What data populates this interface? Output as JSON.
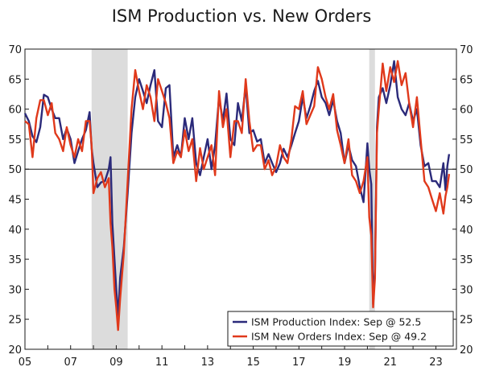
{
  "chart_data": {
    "type": "line",
    "title": "ISM Production vs. New Orders",
    "xlim": [
      2005.0,
      2023.9
    ],
    "ylim": [
      20,
      70
    ],
    "y_ticks": [
      20,
      25,
      30,
      35,
      40,
      45,
      50,
      55,
      60,
      65,
      70
    ],
    "x_ticks": [
      {
        "label": "05",
        "value": 2005
      },
      {
        "label": "07",
        "value": 2007
      },
      {
        "label": "09",
        "value": 2009
      },
      {
        "label": "11",
        "value": 2011
      },
      {
        "label": "13",
        "value": 2013
      },
      {
        "label": "15",
        "value": 2015
      },
      {
        "label": "17",
        "value": 2017
      },
      {
        "label": "19",
        "value": 2019
      },
      {
        "label": "21",
        "value": 2021
      },
      {
        "label": "23",
        "value": 2023
      }
    ],
    "reference_line": 50,
    "recessions": [
      [
        2007.92,
        2009.5
      ],
      [
        2020.08,
        2020.33
      ]
    ],
    "legend_position": "bottom-right",
    "series": [
      {
        "name": "ISM Production Index: Sep @ 52.5",
        "color": "#2b2a7a",
        "points": [
          [
            2005.0,
            59.3
          ],
          [
            2005.17,
            58
          ],
          [
            2005.33,
            55.5
          ],
          [
            2005.5,
            54.5
          ],
          [
            2005.67,
            57
          ],
          [
            2005.83,
            62.4
          ],
          [
            2006.0,
            62
          ],
          [
            2006.17,
            60
          ],
          [
            2006.33,
            58.5
          ],
          [
            2006.5,
            58.5
          ],
          [
            2006.67,
            55
          ],
          [
            2006.83,
            56.8
          ],
          [
            2007.0,
            55
          ],
          [
            2007.17,
            51
          ],
          [
            2007.33,
            53
          ],
          [
            2007.5,
            55
          ],
          [
            2007.67,
            56.5
          ],
          [
            2007.83,
            59.5
          ],
          [
            2007.92,
            53.5
          ],
          [
            2008.0,
            51
          ],
          [
            2008.17,
            47
          ],
          [
            2008.33,
            47.8
          ],
          [
            2008.5,
            48
          ],
          [
            2008.67,
            50
          ],
          [
            2008.75,
            52
          ],
          [
            2008.83,
            41
          ],
          [
            2008.92,
            35
          ],
          [
            2009.0,
            30
          ],
          [
            2009.08,
            25.4
          ],
          [
            2009.17,
            32
          ],
          [
            2009.33,
            37
          ],
          [
            2009.5,
            46
          ],
          [
            2009.67,
            56
          ],
          [
            2009.83,
            62
          ],
          [
            2010.0,
            65
          ],
          [
            2010.17,
            63
          ],
          [
            2010.33,
            61
          ],
          [
            2010.5,
            64
          ],
          [
            2010.67,
            66.5
          ],
          [
            2010.83,
            58
          ],
          [
            2011.0,
            57
          ],
          [
            2011.17,
            63.5
          ],
          [
            2011.33,
            64
          ],
          [
            2011.5,
            52
          ],
          [
            2011.67,
            54
          ],
          [
            2011.83,
            52
          ],
          [
            2012.0,
            58.5
          ],
          [
            2012.17,
            55
          ],
          [
            2012.33,
            58.5
          ],
          [
            2012.5,
            51
          ],
          [
            2012.67,
            49
          ],
          [
            2012.83,
            52
          ],
          [
            2013.0,
            55
          ],
          [
            2013.17,
            50
          ],
          [
            2013.33,
            54
          ],
          [
            2013.5,
            62
          ],
          [
            2013.67,
            58
          ],
          [
            2013.83,
            62.6
          ],
          [
            2014.0,
            55
          ],
          [
            2014.17,
            54
          ],
          [
            2014.33,
            61
          ],
          [
            2014.5,
            58
          ],
          [
            2014.67,
            64
          ],
          [
            2014.83,
            56
          ],
          [
            2015.0,
            56.5
          ],
          [
            2015.17,
            54.6
          ],
          [
            2015.33,
            55
          ],
          [
            2015.5,
            51
          ],
          [
            2015.67,
            52.5
          ],
          [
            2015.83,
            51
          ],
          [
            2016.0,
            49.5
          ],
          [
            2016.17,
            51
          ],
          [
            2016.33,
            53.4
          ],
          [
            2016.5,
            52
          ],
          [
            2016.67,
            54
          ],
          [
            2016.83,
            56
          ],
          [
            2017.0,
            58
          ],
          [
            2017.17,
            62
          ],
          [
            2017.33,
            58.5
          ],
          [
            2017.5,
            60.5
          ],
          [
            2017.67,
            63
          ],
          [
            2017.83,
            64.7
          ],
          [
            2018.0,
            62
          ],
          [
            2018.17,
            61
          ],
          [
            2018.33,
            59
          ],
          [
            2018.5,
            61.5
          ],
          [
            2018.67,
            58
          ],
          [
            2018.83,
            56
          ],
          [
            2019.0,
            51
          ],
          [
            2019.17,
            54
          ],
          [
            2019.33,
            51.5
          ],
          [
            2019.5,
            50.5
          ],
          [
            2019.67,
            47
          ],
          [
            2019.83,
            44.5
          ],
          [
            2020.0,
            54.3
          ],
          [
            2020.08,
            50
          ],
          [
            2020.17,
            47.5
          ],
          [
            2020.25,
            27.5
          ],
          [
            2020.33,
            33.2
          ],
          [
            2020.42,
            57
          ],
          [
            2020.5,
            62
          ],
          [
            2020.67,
            63.5
          ],
          [
            2020.83,
            61
          ],
          [
            2021.0,
            64
          ],
          [
            2021.17,
            68
          ],
          [
            2021.33,
            62
          ],
          [
            2021.5,
            60
          ],
          [
            2021.67,
            59
          ],
          [
            2021.83,
            61
          ],
          [
            2022.0,
            58
          ],
          [
            2022.17,
            60
          ],
          [
            2022.33,
            54
          ],
          [
            2022.5,
            50.5
          ],
          [
            2022.67,
            51
          ],
          [
            2022.83,
            48
          ],
          [
            2023.0,
            48
          ],
          [
            2023.17,
            47
          ],
          [
            2023.33,
            51
          ],
          [
            2023.42,
            46.5
          ],
          [
            2023.5,
            50.5
          ],
          [
            2023.58,
            52.5
          ]
        ]
      },
      {
        "name": "ISM New Orders Index: Sep @ 49.2",
        "color": "#e0391b",
        "points": [
          [
            2005.0,
            58
          ],
          [
            2005.17,
            57.5
          ],
          [
            2005.33,
            52
          ],
          [
            2005.5,
            58.5
          ],
          [
            2005.67,
            61.5
          ],
          [
            2005.83,
            61.5
          ],
          [
            2006.0,
            59
          ],
          [
            2006.17,
            61
          ],
          [
            2006.33,
            56
          ],
          [
            2006.5,
            55
          ],
          [
            2006.67,
            53
          ],
          [
            2006.83,
            57
          ],
          [
            2007.0,
            54
          ],
          [
            2007.17,
            52
          ],
          [
            2007.33,
            55
          ],
          [
            2007.5,
            53
          ],
          [
            2007.67,
            58
          ],
          [
            2007.83,
            58
          ],
          [
            2007.92,
            54
          ],
          [
            2008.0,
            46
          ],
          [
            2008.17,
            48.5
          ],
          [
            2008.33,
            49.5
          ],
          [
            2008.5,
            47
          ],
          [
            2008.67,
            48.5
          ],
          [
            2008.75,
            41
          ],
          [
            2008.83,
            37
          ],
          [
            2008.92,
            30
          ],
          [
            2009.0,
            27
          ],
          [
            2009.08,
            23.2
          ],
          [
            2009.17,
            28.5
          ],
          [
            2009.33,
            36
          ],
          [
            2009.5,
            48
          ],
          [
            2009.67,
            60
          ],
          [
            2009.83,
            66.5
          ],
          [
            2010.0,
            63
          ],
          [
            2010.17,
            60
          ],
          [
            2010.33,
            64
          ],
          [
            2010.5,
            62
          ],
          [
            2010.67,
            58
          ],
          [
            2010.83,
            65
          ],
          [
            2011.0,
            63
          ],
          [
            2011.17,
            61
          ],
          [
            2011.33,
            58.5
          ],
          [
            2011.5,
            51
          ],
          [
            2011.67,
            53
          ],
          [
            2011.83,
            52
          ],
          [
            2012.0,
            56.5
          ],
          [
            2012.17,
            53
          ],
          [
            2012.33,
            55
          ],
          [
            2012.5,
            48
          ],
          [
            2012.67,
            53.5
          ],
          [
            2012.83,
            50
          ],
          [
            2013.0,
            52
          ],
          [
            2013.17,
            54
          ],
          [
            2013.33,
            49
          ],
          [
            2013.5,
            63
          ],
          [
            2013.67,
            57
          ],
          [
            2013.83,
            60
          ],
          [
            2014.0,
            52
          ],
          [
            2014.17,
            58
          ],
          [
            2014.33,
            58
          ],
          [
            2014.5,
            56
          ],
          [
            2014.67,
            65
          ],
          [
            2014.83,
            58
          ],
          [
            2015.0,
            53
          ],
          [
            2015.17,
            54
          ],
          [
            2015.33,
            54
          ],
          [
            2015.5,
            50
          ],
          [
            2015.67,
            51.5
          ],
          [
            2015.83,
            49
          ],
          [
            2016.0,
            50.5
          ],
          [
            2016.17,
            54
          ],
          [
            2016.33,
            52
          ],
          [
            2016.5,
            51
          ],
          [
            2016.67,
            55
          ],
          [
            2016.83,
            60.5
          ],
          [
            2017.0,
            60
          ],
          [
            2017.17,
            63
          ],
          [
            2017.33,
            57.5
          ],
          [
            2017.5,
            59
          ],
          [
            2017.67,
            60.5
          ],
          [
            2017.83,
            67
          ],
          [
            2018.0,
            65
          ],
          [
            2018.17,
            62
          ],
          [
            2018.33,
            60
          ],
          [
            2018.5,
            62.5
          ],
          [
            2018.67,
            56.5
          ],
          [
            2018.83,
            54
          ],
          [
            2019.0,
            51
          ],
          [
            2019.17,
            55
          ],
          [
            2019.33,
            49
          ],
          [
            2019.5,
            48
          ],
          [
            2019.67,
            46
          ],
          [
            2019.83,
            48
          ],
          [
            2020.0,
            52
          ],
          [
            2020.08,
            42
          ],
          [
            2020.17,
            39
          ],
          [
            2020.25,
            27
          ],
          [
            2020.33,
            31.8
          ],
          [
            2020.42,
            56
          ],
          [
            2020.5,
            60
          ],
          [
            2020.67,
            67.6
          ],
          [
            2020.83,
            63
          ],
          [
            2021.0,
            67
          ],
          [
            2021.17,
            64.5
          ],
          [
            2021.33,
            68
          ],
          [
            2021.5,
            64
          ],
          [
            2021.67,
            66
          ],
          [
            2021.83,
            61
          ],
          [
            2022.0,
            57
          ],
          [
            2022.17,
            62
          ],
          [
            2022.33,
            55
          ],
          [
            2022.5,
            48
          ],
          [
            2022.67,
            47
          ],
          [
            2022.83,
            45
          ],
          [
            2023.0,
            43
          ],
          [
            2023.17,
            46
          ],
          [
            2023.33,
            42.6
          ],
          [
            2023.42,
            45.5
          ],
          [
            2023.5,
            47
          ],
          [
            2023.58,
            49.2
          ]
        ]
      }
    ]
  }
}
